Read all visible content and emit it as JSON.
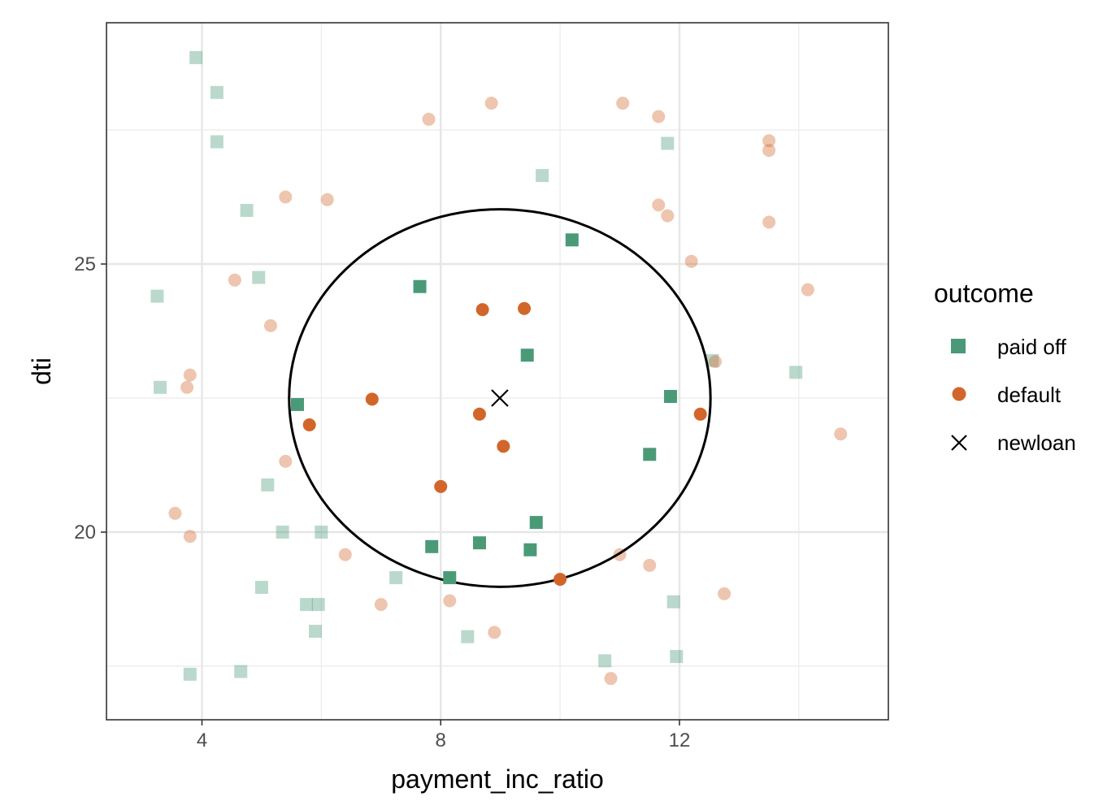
{
  "chart_data": {
    "type": "scatter",
    "title": "",
    "xlabel": "payment_inc_ratio",
    "ylabel": "dti",
    "xlim": [
      2.4,
      15.5
    ],
    "ylim": [
      16.5,
      29.5
    ],
    "x_ticks": [
      4,
      8,
      12
    ],
    "x_minor_ticks": [
      6,
      10,
      14
    ],
    "y_ticks": [
      20,
      25
    ],
    "y_minor_ticks": [
      17.5,
      22.5,
      27.5
    ],
    "x_tick_labels": [
      "4",
      "8",
      "12"
    ],
    "y_tick_labels": [
      "20",
      "25"
    ],
    "grid": true,
    "legend": {
      "title": "outcome",
      "position": "right",
      "entries": [
        {
          "label": "paid off",
          "shape": "square",
          "color": "#4a9a78"
        },
        {
          "label": "default",
          "shape": "circle",
          "color": "#d2662a"
        },
        {
          "label": "newloan",
          "shape": "cross",
          "color": "#000000"
        }
      ]
    },
    "circle": {
      "center_x": 8.99,
      "center_y": 22.5,
      "radius_x": 3.53,
      "radius_y": 3.52
    },
    "newloan": {
      "x": 8.99,
      "y": 22.5
    },
    "series": [
      {
        "name": "paid off",
        "color": "#4a9a78",
        "shape": "square",
        "inside": [
          {
            "x": 10.2,
            "y": 25.45
          },
          {
            "x": 7.65,
            "y": 24.58
          },
          {
            "x": 9.45,
            "y": 23.3
          },
          {
            "x": 5.6,
            "y": 22.38
          },
          {
            "x": 11.85,
            "y": 22.53
          },
          {
            "x": 11.5,
            "y": 21.45
          },
          {
            "x": 9.6,
            "y": 20.18
          },
          {
            "x": 7.85,
            "y": 19.73
          },
          {
            "x": 8.65,
            "y": 19.8
          },
          {
            "x": 9.5,
            "y": 19.67
          },
          {
            "x": 8.15,
            "y": 19.15
          }
        ],
        "outside": [
          {
            "x": 3.9,
            "y": 28.85
          },
          {
            "x": 4.25,
            "y": 28.2
          },
          {
            "x": 4.25,
            "y": 27.28
          },
          {
            "x": 4.75,
            "y": 26.0
          },
          {
            "x": 4.95,
            "y": 24.75
          },
          {
            "x": 3.25,
            "y": 24.4
          },
          {
            "x": 3.3,
            "y": 22.7
          },
          {
            "x": 9.7,
            "y": 26.65
          },
          {
            "x": 11.8,
            "y": 27.25
          },
          {
            "x": 12.55,
            "y": 23.2
          },
          {
            "x": 13.95,
            "y": 22.98
          },
          {
            "x": 5.1,
            "y": 20.88
          },
          {
            "x": 5.35,
            "y": 20.0
          },
          {
            "x": 6.0,
            "y": 20.0
          },
          {
            "x": 5.0,
            "y": 18.97
          },
          {
            "x": 5.75,
            "y": 18.65
          },
          {
            "x": 5.95,
            "y": 18.65
          },
          {
            "x": 7.25,
            "y": 19.15
          },
          {
            "x": 5.9,
            "y": 18.15
          },
          {
            "x": 8.45,
            "y": 18.05
          },
          {
            "x": 3.8,
            "y": 17.35
          },
          {
            "x": 4.65,
            "y": 17.4
          },
          {
            "x": 11.9,
            "y": 18.7
          },
          {
            "x": 10.75,
            "y": 17.6
          },
          {
            "x": 11.95,
            "y": 17.68
          }
        ]
      },
      {
        "name": "default",
        "color": "#d2662a",
        "shape": "circle",
        "inside": [
          {
            "x": 8.7,
            "y": 24.15
          },
          {
            "x": 9.4,
            "y": 24.17
          },
          {
            "x": 6.85,
            "y": 22.48
          },
          {
            "x": 5.8,
            "y": 22.0
          },
          {
            "x": 8.65,
            "y": 22.2
          },
          {
            "x": 9.05,
            "y": 21.6
          },
          {
            "x": 8.0,
            "y": 20.85
          },
          {
            "x": 12.35,
            "y": 22.2
          },
          {
            "x": 10.0,
            "y": 19.12
          }
        ],
        "outside": [
          {
            "x": 8.85,
            "y": 28.0
          },
          {
            "x": 7.8,
            "y": 27.7
          },
          {
            "x": 11.05,
            "y": 28.0
          },
          {
            "x": 11.65,
            "y": 27.75
          },
          {
            "x": 13.5,
            "y": 27.3
          },
          {
            "x": 13.5,
            "y": 27.12
          },
          {
            "x": 5.4,
            "y": 26.25
          },
          {
            "x": 6.1,
            "y": 26.2
          },
          {
            "x": 11.65,
            "y": 26.1
          },
          {
            "x": 11.8,
            "y": 25.9
          },
          {
            "x": 13.5,
            "y": 25.78
          },
          {
            "x": 12.2,
            "y": 25.05
          },
          {
            "x": 4.55,
            "y": 24.7
          },
          {
            "x": 14.15,
            "y": 24.52
          },
          {
            "x": 5.15,
            "y": 23.85
          },
          {
            "x": 3.8,
            "y": 22.93
          },
          {
            "x": 3.75,
            "y": 22.7
          },
          {
            "x": 12.6,
            "y": 23.18
          },
          {
            "x": 14.7,
            "y": 21.83
          },
          {
            "x": 5.4,
            "y": 21.32
          },
          {
            "x": 3.55,
            "y": 20.35
          },
          {
            "x": 3.8,
            "y": 19.92
          },
          {
            "x": 6.4,
            "y": 19.58
          },
          {
            "x": 11.0,
            "y": 19.58
          },
          {
            "x": 11.5,
            "y": 19.38
          },
          {
            "x": 7.0,
            "y": 18.65
          },
          {
            "x": 8.15,
            "y": 18.72
          },
          {
            "x": 12.75,
            "y": 18.85
          },
          {
            "x": 8.9,
            "y": 18.13
          },
          {
            "x": 10.85,
            "y": 17.27
          }
        ]
      }
    ]
  }
}
